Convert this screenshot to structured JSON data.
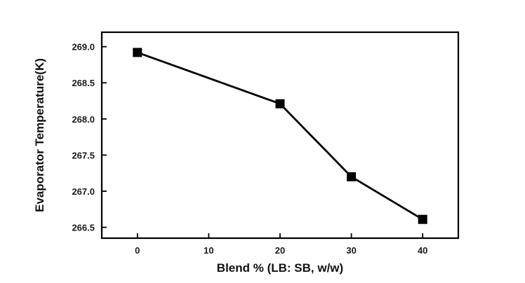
{
  "chart_data": {
    "type": "line",
    "title": "",
    "xlabel": "Blend % (LB: SB, w/w)",
    "ylabel": "Evaporator Temperature(K)",
    "x": [
      0,
      20,
      30,
      40
    ],
    "series": [
      {
        "name": "",
        "values": [
          268.92,
          268.21,
          267.2,
          266.61
        ]
      }
    ],
    "xlim": [
      -5,
      45
    ],
    "ylim": [
      266.35,
      269.2
    ],
    "xticks": [
      0,
      10,
      20,
      30,
      40
    ],
    "xtick_labels": [
      "0",
      "10",
      "20",
      "30",
      "40"
    ],
    "yticks": [
      266.5,
      267.0,
      267.5,
      268.0,
      268.5,
      269.0
    ],
    "ytick_labels": [
      "266.5",
      "267.0",
      "267.5",
      "268.0",
      "268.5",
      "269.0"
    ],
    "marker": "square",
    "grid": false,
    "legend": "none",
    "colors": {
      "line": "#000000",
      "marker": "#000000",
      "axis": "#000000"
    }
  }
}
